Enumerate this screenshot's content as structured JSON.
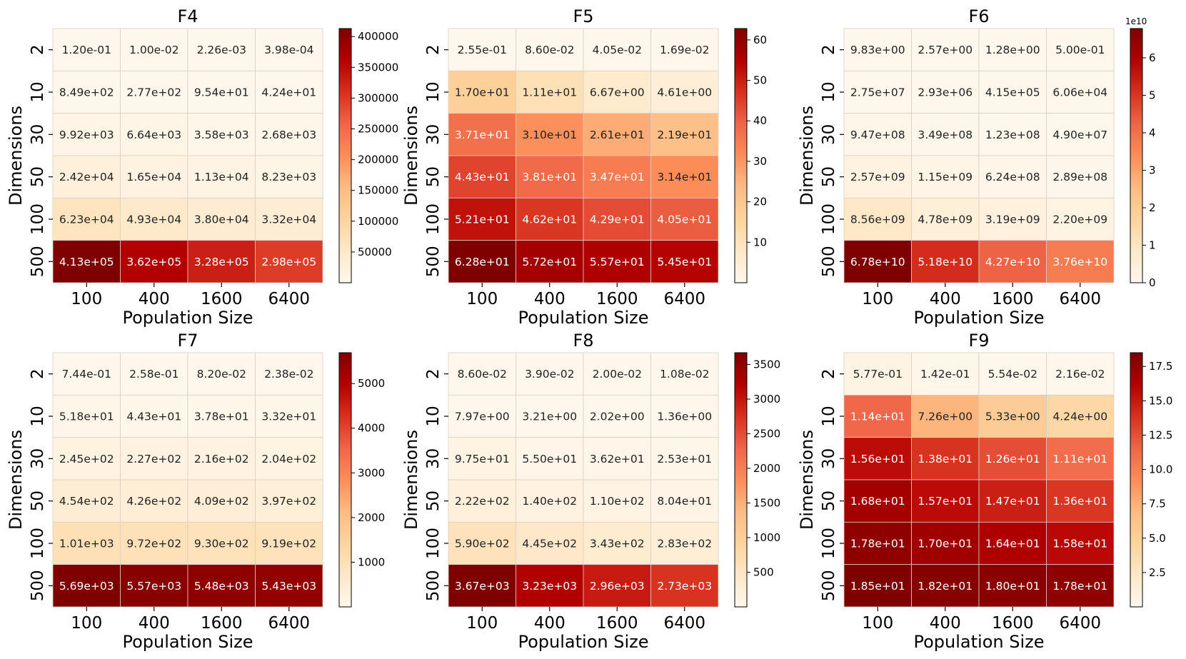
{
  "figure": {
    "x_axis_label": "Population Size",
    "y_axis_label": "Dimensions"
  },
  "chart_data": [
    {
      "type": "heatmap",
      "title": "F4",
      "xlabel": "Population Size",
      "ylabel": "Dimensions",
      "x_categories": [
        "100",
        "400",
        "1600",
        "6400"
      ],
      "y_categories": [
        "2",
        "10",
        "30",
        "50",
        "100",
        "500"
      ],
      "labels": [
        [
          "1.20e-01",
          "1.00e-02",
          "2.26e-03",
          "3.98e-04"
        ],
        [
          "8.49e+02",
          "2.77e+02",
          "9.54e+01",
          "4.24e+01"
        ],
        [
          "9.92e+03",
          "6.64e+03",
          "3.58e+03",
          "2.68e+03"
        ],
        [
          "2.42e+04",
          "1.65e+04",
          "1.13e+04",
          "8.23e+03"
        ],
        [
          "6.23e+04",
          "4.93e+04",
          "3.80e+04",
          "3.32e+04"
        ],
        [
          "4.13e+05",
          "3.62e+05",
          "3.28e+05",
          "2.98e+05"
        ]
      ],
      "values": [
        [
          0.12,
          0.01,
          0.00226,
          0.000398
        ],
        [
          849,
          277,
          95.4,
          42.4
        ],
        [
          9920,
          6640,
          3580,
          2680
        ],
        [
          24200,
          16500,
          11300,
          8230
        ],
        [
          62300,
          49300,
          38000,
          33200
        ],
        [
          413000,
          362000,
          328000,
          298000
        ]
      ],
      "colorbar": {
        "min": 0,
        "max": 413000,
        "ticks": [
          50000,
          100000,
          150000,
          200000,
          250000,
          300000,
          350000,
          400000
        ],
        "tick_labels": [
          "50000",
          "100000",
          "150000",
          "200000",
          "250000",
          "300000",
          "350000",
          "400000"
        ],
        "offset_label": ""
      }
    },
    {
      "type": "heatmap",
      "title": "F5",
      "xlabel": "Population Size",
      "ylabel": "Dimensions",
      "x_categories": [
        "100",
        "400",
        "1600",
        "6400"
      ],
      "y_categories": [
        "2",
        "10",
        "30",
        "50",
        "100",
        "500"
      ],
      "labels": [
        [
          "2.55e-01",
          "8.60e-02",
          "4.05e-02",
          "1.69e-02"
        ],
        [
          "1.70e+01",
          "1.11e+01",
          "6.67e+00",
          "4.61e+00"
        ],
        [
          "3.71e+01",
          "3.10e+01",
          "2.61e+01",
          "2.19e+01"
        ],
        [
          "4.43e+01",
          "3.81e+01",
          "3.47e+01",
          "3.14e+01"
        ],
        [
          "5.21e+01",
          "4.62e+01",
          "4.29e+01",
          "4.05e+01"
        ],
        [
          "6.28e+01",
          "5.72e+01",
          "5.57e+01",
          "5.45e+01"
        ]
      ],
      "values": [
        [
          0.255,
          0.086,
          0.0405,
          0.0169
        ],
        [
          17.0,
          11.1,
          6.67,
          4.61
        ],
        [
          37.1,
          31.0,
          26.1,
          21.9
        ],
        [
          44.3,
          38.1,
          34.7,
          31.4
        ],
        [
          52.1,
          46.2,
          42.9,
          40.5
        ],
        [
          62.8,
          57.2,
          55.7,
          54.5
        ]
      ],
      "colorbar": {
        "min": 0,
        "max": 62.8,
        "ticks": [
          10,
          20,
          30,
          40,
          50,
          60
        ],
        "tick_labels": [
          "10",
          "20",
          "30",
          "40",
          "50",
          "60"
        ],
        "offset_label": ""
      }
    },
    {
      "type": "heatmap",
      "title": "F6",
      "xlabel": "Population Size",
      "ylabel": "Dimensions",
      "x_categories": [
        "100",
        "400",
        "1600",
        "6400"
      ],
      "y_categories": [
        "2",
        "10",
        "30",
        "50",
        "100",
        "500"
      ],
      "labels": [
        [
          "9.83e+00",
          "2.57e+00",
          "1.28e+00",
          "5.00e-01"
        ],
        [
          "2.75e+07",
          "2.93e+06",
          "4.15e+05",
          "6.06e+04"
        ],
        [
          "9.47e+08",
          "3.49e+08",
          "1.23e+08",
          "4.90e+07"
        ],
        [
          "2.57e+09",
          "1.15e+09",
          "6.24e+08",
          "2.89e+08"
        ],
        [
          "8.56e+09",
          "4.78e+09",
          "3.19e+09",
          "2.20e+09"
        ],
        [
          "6.78e+10",
          "5.18e+10",
          "4.27e+10",
          "3.76e+10"
        ]
      ],
      "values": [
        [
          9.83,
          2.57,
          1.28,
          0.5
        ],
        [
          27500000,
          2930000,
          415000,
          60600
        ],
        [
          947000000,
          349000000,
          123000000,
          49000000
        ],
        [
          2570000000,
          1150000000,
          624000000,
          289000000
        ],
        [
          8560000000,
          4780000000,
          3190000000,
          2200000000
        ],
        [
          67800000000,
          51800000000,
          42700000000,
          37600000000
        ]
      ],
      "colorbar": {
        "min": 0,
        "max": 67800000000,
        "ticks": [
          0,
          10000000000,
          20000000000,
          30000000000,
          40000000000,
          50000000000,
          60000000000
        ],
        "tick_labels": [
          "0",
          "1",
          "2",
          "3",
          "4",
          "5",
          "6"
        ],
        "offset_label": "1e10"
      }
    },
    {
      "type": "heatmap",
      "title": "F7",
      "xlabel": "Population Size",
      "ylabel": "Dimensions",
      "x_categories": [
        "100",
        "400",
        "1600",
        "6400"
      ],
      "y_categories": [
        "2",
        "10",
        "30",
        "50",
        "100",
        "500"
      ],
      "labels": [
        [
          "7.44e-01",
          "2.58e-01",
          "8.20e-02",
          "2.38e-02"
        ],
        [
          "5.18e+01",
          "4.43e+01",
          "3.78e+01",
          "3.32e+01"
        ],
        [
          "2.45e+02",
          "2.27e+02",
          "2.16e+02",
          "2.04e+02"
        ],
        [
          "4.54e+02",
          "4.26e+02",
          "4.09e+02",
          "3.97e+02"
        ],
        [
          "1.01e+03",
          "9.72e+02",
          "9.30e+02",
          "9.19e+02"
        ],
        [
          "5.69e+03",
          "5.57e+03",
          "5.48e+03",
          "5.43e+03"
        ]
      ],
      "values": [
        [
          0.744,
          0.258,
          0.082,
          0.0238
        ],
        [
          51.8,
          44.3,
          37.8,
          33.2
        ],
        [
          245,
          227,
          216,
          204
        ],
        [
          454,
          426,
          409,
          397
        ],
        [
          1010,
          972,
          930,
          919
        ],
        [
          5690,
          5570,
          5480,
          5430
        ]
      ],
      "colorbar": {
        "min": 0,
        "max": 5690,
        "ticks": [
          1000,
          2000,
          3000,
          4000,
          5000
        ],
        "tick_labels": [
          "1000",
          "2000",
          "3000",
          "4000",
          "5000"
        ],
        "offset_label": ""
      }
    },
    {
      "type": "heatmap",
      "title": "F8",
      "xlabel": "Population Size",
      "ylabel": "Dimensions",
      "x_categories": [
        "100",
        "400",
        "1600",
        "6400"
      ],
      "y_categories": [
        "2",
        "10",
        "30",
        "50",
        "100",
        "500"
      ],
      "labels": [
        [
          "8.60e-02",
          "3.90e-02",
          "2.00e-02",
          "1.08e-02"
        ],
        [
          "7.97e+00",
          "3.21e+00",
          "2.02e+00",
          "1.36e+00"
        ],
        [
          "9.75e+01",
          "5.50e+01",
          "3.62e+01",
          "2.53e+01"
        ],
        [
          "2.22e+02",
          "1.40e+02",
          "1.10e+02",
          "8.04e+01"
        ],
        [
          "5.90e+02",
          "4.45e+02",
          "3.43e+02",
          "2.83e+02"
        ],
        [
          "3.67e+03",
          "3.23e+03",
          "2.96e+03",
          "2.73e+03"
        ]
      ],
      "values": [
        [
          0.086,
          0.039,
          0.02,
          0.0108
        ],
        [
          7.97,
          3.21,
          2.02,
          1.36
        ],
        [
          97.5,
          55.0,
          36.2,
          25.3
        ],
        [
          222,
          140,
          110,
          80.4
        ],
        [
          590,
          445,
          343,
          283
        ],
        [
          3670,
          3230,
          2960,
          2730
        ]
      ],
      "colorbar": {
        "min": 0,
        "max": 3670,
        "ticks": [
          500,
          1000,
          1500,
          2000,
          2500,
          3000,
          3500
        ],
        "tick_labels": [
          "500",
          "1000",
          "1500",
          "2000",
          "2500",
          "3000",
          "3500"
        ],
        "offset_label": ""
      }
    },
    {
      "type": "heatmap",
      "title": "F9",
      "xlabel": "Population Size",
      "ylabel": "Dimensions",
      "x_categories": [
        "100",
        "400",
        "1600",
        "6400"
      ],
      "y_categories": [
        "2",
        "10",
        "30",
        "50",
        "100",
        "500"
      ],
      "labels": [
        [
          "5.77e-01",
          "1.42e-01",
          "5.54e-02",
          "2.16e-02"
        ],
        [
          "1.14e+01",
          "7.26e+00",
          "5.33e+00",
          "4.24e+00"
        ],
        [
          "1.56e+01",
          "1.38e+01",
          "1.26e+01",
          "1.11e+01"
        ],
        [
          "1.68e+01",
          "1.57e+01",
          "1.47e+01",
          "1.36e+01"
        ],
        [
          "1.78e+01",
          "1.70e+01",
          "1.64e+01",
          "1.58e+01"
        ],
        [
          "1.85e+01",
          "1.82e+01",
          "1.80e+01",
          "1.78e+01"
        ]
      ],
      "values": [
        [
          0.577,
          0.142,
          0.0554,
          0.0216
        ],
        [
          11.4,
          7.26,
          5.33,
          4.24
        ],
        [
          15.6,
          13.8,
          12.6,
          11.1
        ],
        [
          16.8,
          15.7,
          14.7,
          13.6
        ],
        [
          17.8,
          17.0,
          16.4,
          15.8
        ],
        [
          18.5,
          18.2,
          18.0,
          17.8
        ]
      ],
      "colorbar": {
        "min": 0,
        "max": 18.5,
        "ticks": [
          2.5,
          5.0,
          7.5,
          10.0,
          12.5,
          15.0,
          17.5
        ],
        "tick_labels": [
          "2.5",
          "5.0",
          "7.5",
          "10.0",
          "12.5",
          "15.0",
          "17.5"
        ],
        "offset_label": ""
      }
    }
  ]
}
